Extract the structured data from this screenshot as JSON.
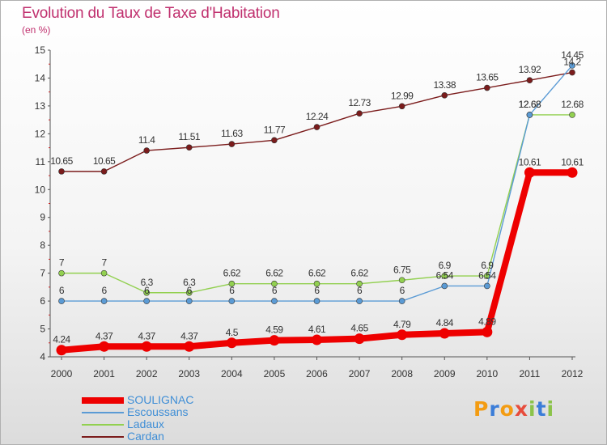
{
  "chart_data": {
    "type": "line",
    "title": "Evolution du Taux de Taxe d'Habitation",
    "subtitle": "(en %)",
    "x": [
      "2000",
      "2001",
      "2002",
      "2003",
      "2004",
      "2005",
      "2006",
      "2007",
      "2008",
      "2009",
      "2010",
      "2011",
      "2012"
    ],
    "ylim": [
      4,
      15
    ],
    "yticks": [
      4,
      5,
      6,
      7,
      8,
      9,
      10,
      11,
      12,
      13,
      14,
      15
    ],
    "grid": false,
    "legend_position": "bottom-left",
    "series": [
      {
        "name": "SOULIGNAC",
        "color": "#ee0000",
        "values": [
          4.24,
          4.37,
          4.37,
          4.37,
          4.5,
          4.59,
          4.61,
          4.65,
          4.79,
          4.84,
          4.89,
          10.61,
          10.61
        ],
        "labels": [
          "4.24",
          "4.37",
          "4.37",
          "4.37",
          "4.5",
          "4.59",
          "4.61",
          "4.65",
          "4.79",
          "4.84",
          "4.89",
          "10.61",
          "10.61"
        ]
      },
      {
        "name": "Escoussans",
        "color": "#5b9bd5",
        "values": [
          6,
          6,
          6,
          6,
          6,
          6,
          6,
          6,
          6,
          6.54,
          6.54,
          12.68,
          14.45
        ],
        "labels": [
          "6",
          "6",
          "6",
          "6",
          "6",
          "6",
          "6",
          "6",
          "6",
          "6.54",
          "6.54",
          "12.68",
          "14.45"
        ]
      },
      {
        "name": "Ladaux",
        "color": "#92d050",
        "values": [
          7,
          7,
          6.3,
          6.3,
          6.62,
          6.62,
          6.62,
          6.62,
          6.75,
          6.9,
          6.9,
          12.68,
          12.68
        ],
        "labels": [
          "7",
          "7",
          "6.3",
          "6.3",
          "6.62",
          "6.62",
          "6.62",
          "6.62",
          "6.75",
          "6.9",
          "6.9",
          "12.68",
          "12.68"
        ]
      },
      {
        "name": "Cardan",
        "color": "#7b1c1c",
        "values": [
          10.65,
          10.65,
          11.4,
          11.51,
          11.63,
          11.77,
          12.24,
          12.73,
          12.99,
          13.38,
          13.65,
          13.92,
          14.2
        ],
        "labels": [
          "10.65",
          "10.65",
          "11.4",
          "11.51",
          "11.63",
          "11.77",
          "12.24",
          "12.73",
          "12.99",
          "13.38",
          "13.65",
          "13.92",
          "14.2"
        ]
      }
    ]
  },
  "legend": {
    "items": [
      "SOULIGNAC",
      "Escoussans",
      "Ladaux",
      "Cardan"
    ]
  },
  "logo": {
    "text": "Proxiti"
  }
}
